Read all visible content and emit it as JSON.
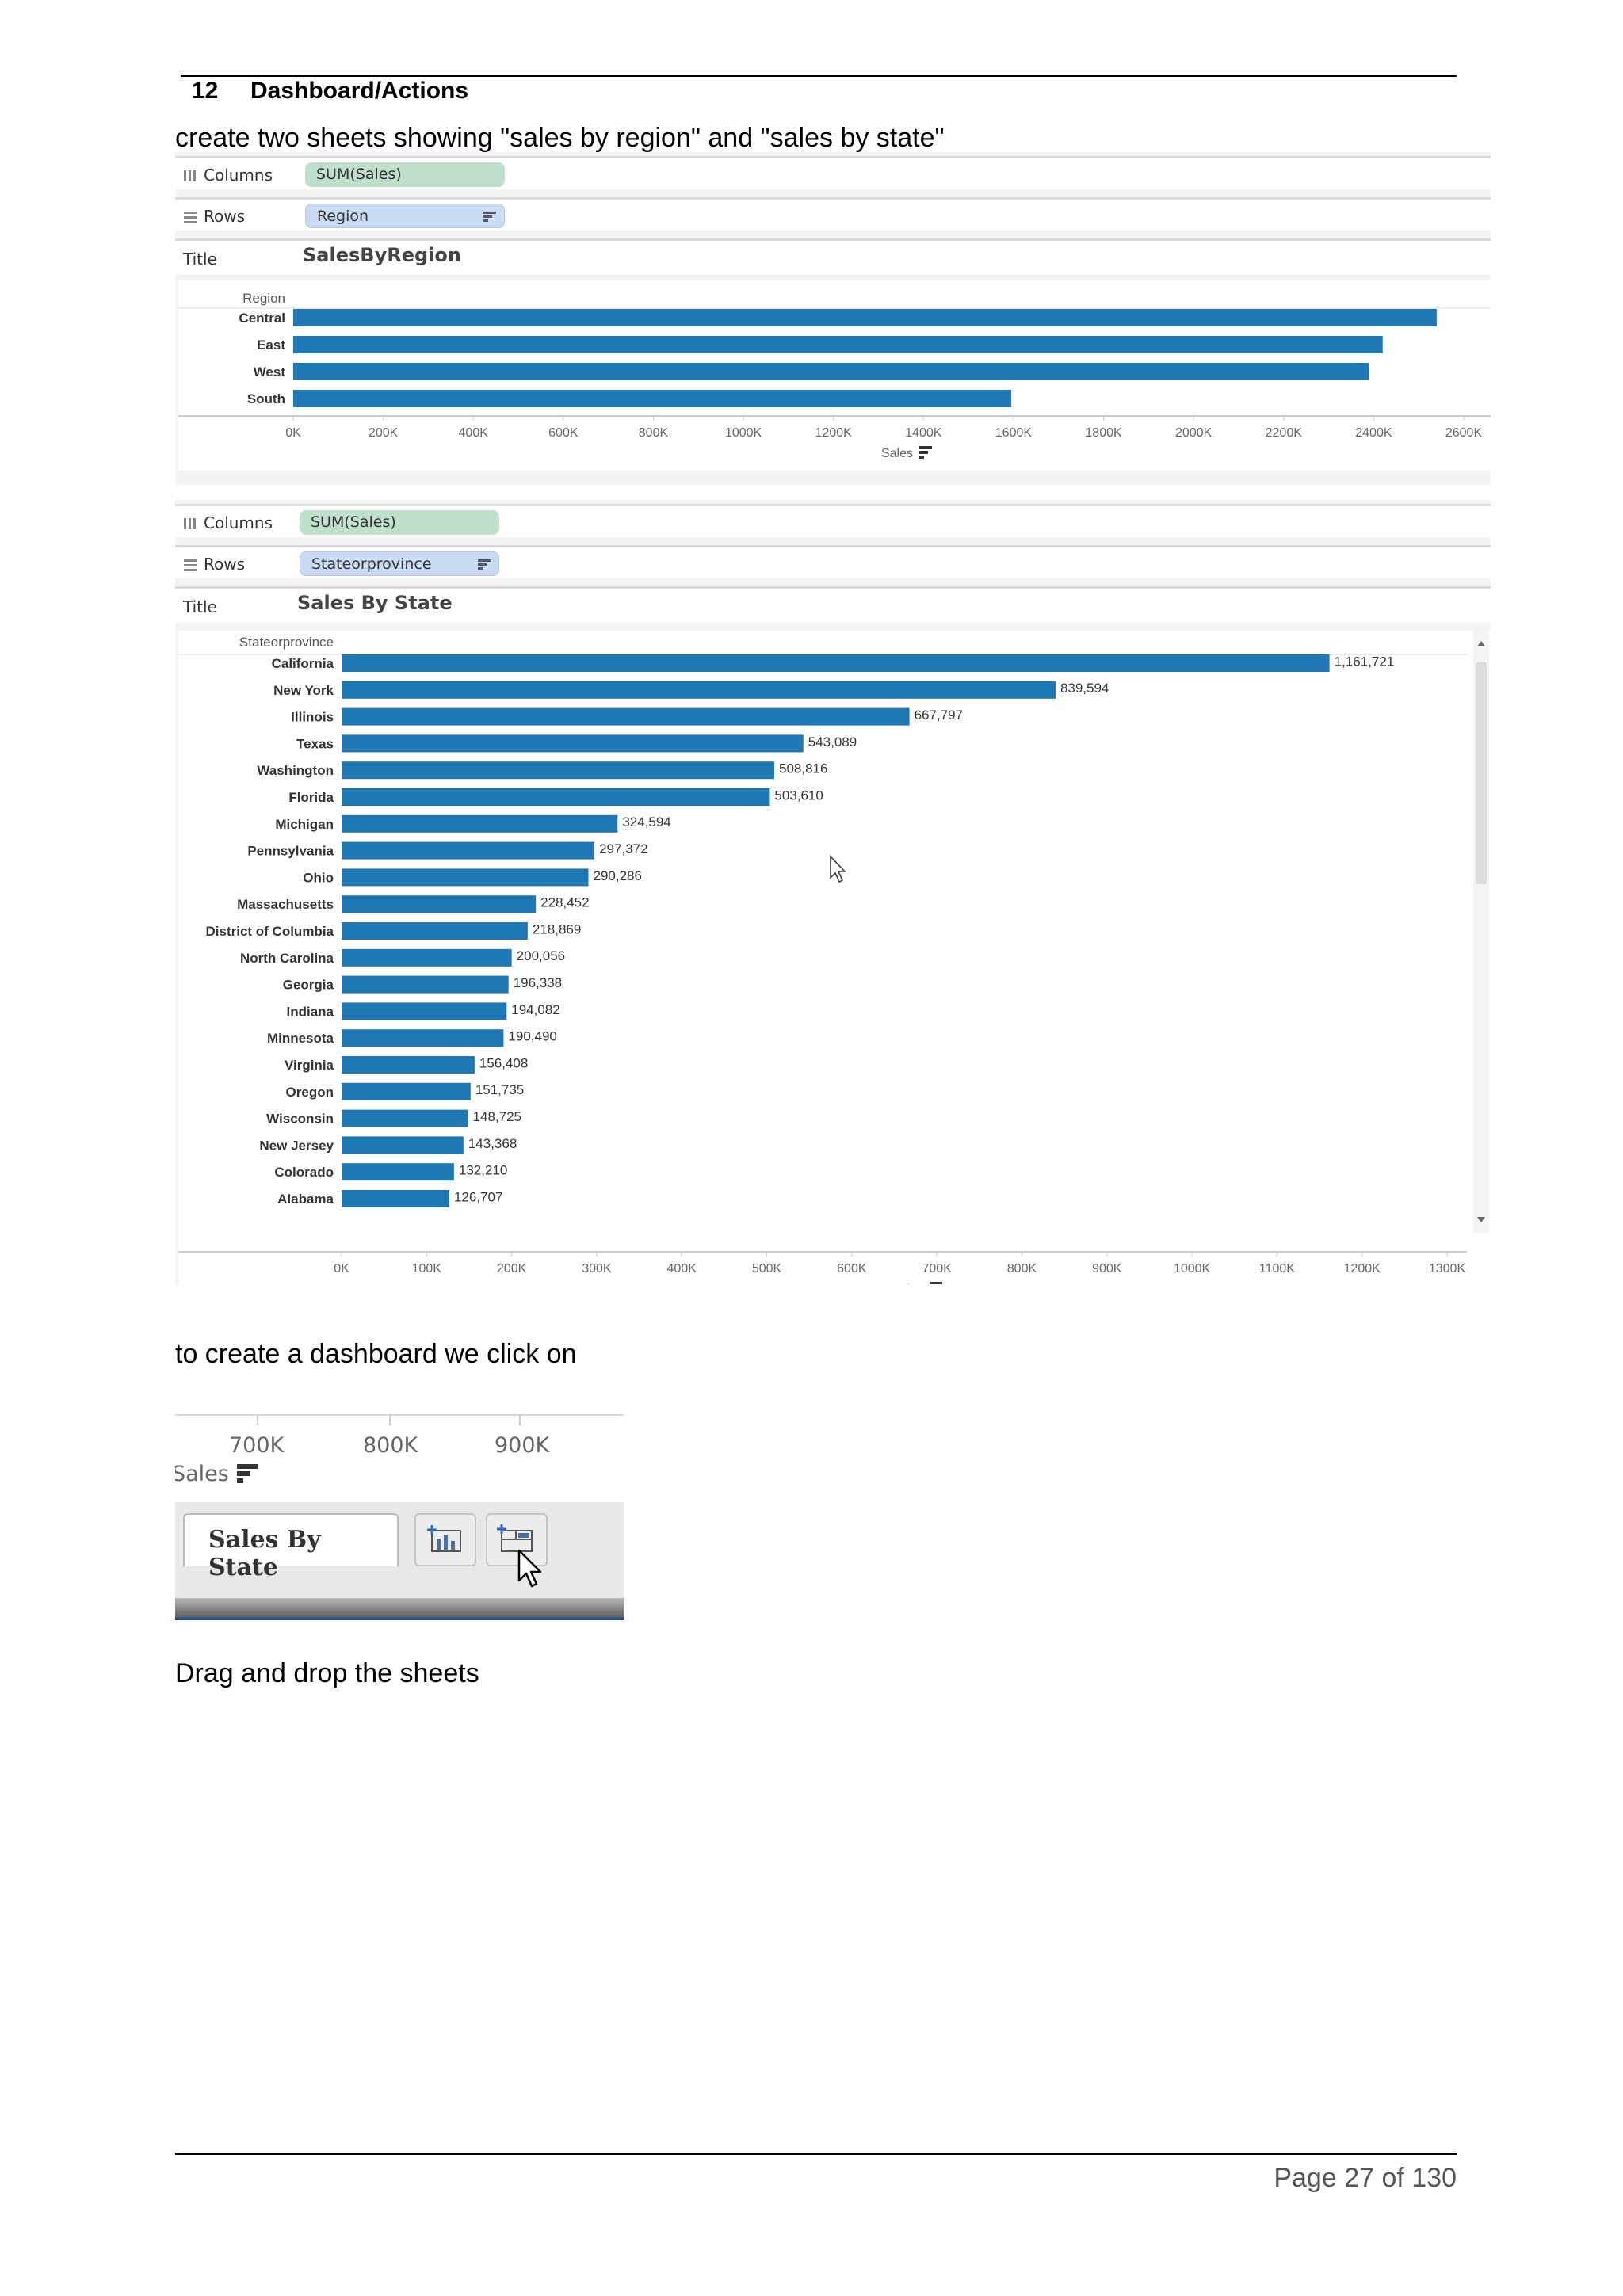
{
  "section": {
    "number": "12",
    "title": "Dashboard/Actions"
  },
  "intro": "create two sheets showing \"sales by region\" and \"sales by state\"",
  "sheet1": {
    "columns_label": "Columns",
    "columns_pill": "SUM(Sales)",
    "rows_label": "Rows",
    "rows_pill": "Region",
    "title_label": "Title",
    "title_value": "SalesByRegion"
  },
  "sheet2": {
    "columns_label": "Columns",
    "columns_pill": "SUM(Sales)",
    "rows_label": "Rows",
    "rows_pill": "Stateorprovince",
    "title_label": "Title",
    "title_value": "Sales By State"
  },
  "chart_data": [
    {
      "type": "bar",
      "orientation": "horizontal",
      "ylabel": "Region",
      "xlabel": "Sales",
      "categories": [
        "Central",
        "East",
        "West",
        "South"
      ],
      "values": [
        2540000,
        2420000,
        2390000,
        1595000
      ],
      "xlim": [
        0,
        2600000
      ],
      "xticks": [
        "0K",
        "200K",
        "400K",
        "600K",
        "800K",
        "1000K",
        "1200K",
        "1400K",
        "1600K",
        "1800K",
        "2000K",
        "2200K",
        "2400K",
        "2600K"
      ],
      "color": "#1f77b4"
    },
    {
      "type": "bar",
      "orientation": "horizontal",
      "ylabel": "Stateorprovince",
      "xlabel": "Sales",
      "categories": [
        "California",
        "New York",
        "Illinois",
        "Texas",
        "Washington",
        "Florida",
        "Michigan",
        "Pennsylvania",
        "Ohio",
        "Massachusetts",
        "District of Columbia",
        "North Carolina",
        "Georgia",
        "Indiana",
        "Minnesota",
        "Virginia",
        "Oregon",
        "Wisconsin",
        "New Jersey",
        "Colorado",
        "Alabama"
      ],
      "values": [
        1161721,
        839594,
        667797,
        543089,
        508816,
        503610,
        324594,
        297372,
        290286,
        228452,
        218869,
        200056,
        196338,
        194082,
        190490,
        156408,
        151735,
        148725,
        143368,
        132210,
        126707
      ],
      "labels": [
        "1,161,721",
        "839,594",
        "667,797",
        "543,089",
        "508,816",
        "503,610",
        "324,594",
        "297,372",
        "290,286",
        "228,452",
        "218,869",
        "200,056",
        "196,338",
        "194,082",
        "190,490",
        "156,408",
        "151,735",
        "148,725",
        "143,368",
        "132,210",
        "126,707"
      ],
      "xlim": [
        0,
        1300000
      ],
      "xticks": [
        "0K",
        "100K",
        "200K",
        "300K",
        "400K",
        "500K",
        "600K",
        "700K",
        "800K",
        "900K",
        "1000K",
        "1100K",
        "1200K",
        "1300K"
      ],
      "color": "#1f77b4"
    }
  ],
  "para2": "to create a dashboard we click on",
  "snapshot": {
    "ticks": [
      "700K",
      "800K",
      "900K"
    ],
    "axis_label": "Sales",
    "tab_label": "Sales By State"
  },
  "para3": "Drag and drop the sheets",
  "footer": "Page 27 of 130"
}
